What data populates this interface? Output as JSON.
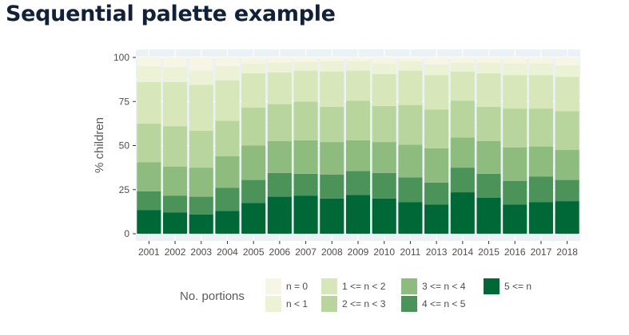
{
  "page": {
    "title": "Sequential palette example"
  },
  "chart_data": {
    "type": "bar",
    "stacked": true,
    "title": "",
    "xlabel": "",
    "ylabel": "% children",
    "ylim": [
      0,
      100
    ],
    "yticks": [
      0,
      25,
      50,
      75,
      100
    ],
    "grid": true,
    "legend": {
      "title": "No. portions",
      "position": "bottom"
    },
    "categories": [
      "2001",
      "2002",
      "2003",
      "2004",
      "2005",
      "2006",
      "2007",
      "2008",
      "2009",
      "2010",
      "2011",
      "2013",
      "2014",
      "2015",
      "2016",
      "2017",
      "2018"
    ],
    "series": [
      {
        "name": "5 <= n",
        "color": "#006837",
        "values": [
          13.5,
          12,
          11,
          13,
          17.5,
          21,
          21.5,
          20,
          22,
          20,
          18,
          16.5,
          23.5,
          20.5,
          16.5,
          18,
          18.5
        ]
      },
      {
        "name": "4 <= n < 5",
        "color": "#4b9358",
        "values": [
          10.5,
          9.5,
          10,
          13,
          13,
          13.5,
          12.5,
          13.5,
          13.5,
          14.5,
          14,
          12.5,
          14,
          13.5,
          13.5,
          14.5,
          12
        ]
      },
      {
        "name": "3 <= n < 4",
        "color": "#8ebb7e",
        "values": [
          16.5,
          16.5,
          16.5,
          18,
          19.5,
          18,
          19,
          18.5,
          17.5,
          17.5,
          18.5,
          19.5,
          17,
          18.5,
          19,
          17,
          17
        ]
      },
      {
        "name": "2 <= n < 3",
        "color": "#b9d59e",
        "values": [
          22,
          23,
          21,
          20,
          21.5,
          21,
          22,
          20,
          22.5,
          20.5,
          22.5,
          22,
          21,
          19.5,
          22,
          21.5,
          22
        ]
      },
      {
        "name": "1 <= n < 2",
        "color": "#d8e7b9",
        "values": [
          23.5,
          25,
          26,
          23,
          19.5,
          18,
          17.5,
          20,
          17,
          18,
          19.5,
          19.5,
          16.5,
          19,
          19,
          19,
          19.5
        ]
      },
      {
        "name": "n < 1",
        "color": "#ecf2d6",
        "values": [
          9,
          8.5,
          8,
          8,
          5.5,
          5.5,
          5,
          6,
          5.5,
          6,
          5.5,
          6,
          5,
          6,
          6.5,
          6.5,
          6.5
        ]
      },
      {
        "name": "n = 0",
        "color": "#f7f5e5",
        "values": [
          5,
          5.5,
          7.5,
          5,
          3.5,
          3,
          2.5,
          2,
          2,
          3.5,
          2,
          4,
          3,
          3,
          3.5,
          3.5,
          4.5
        ]
      }
    ]
  }
}
